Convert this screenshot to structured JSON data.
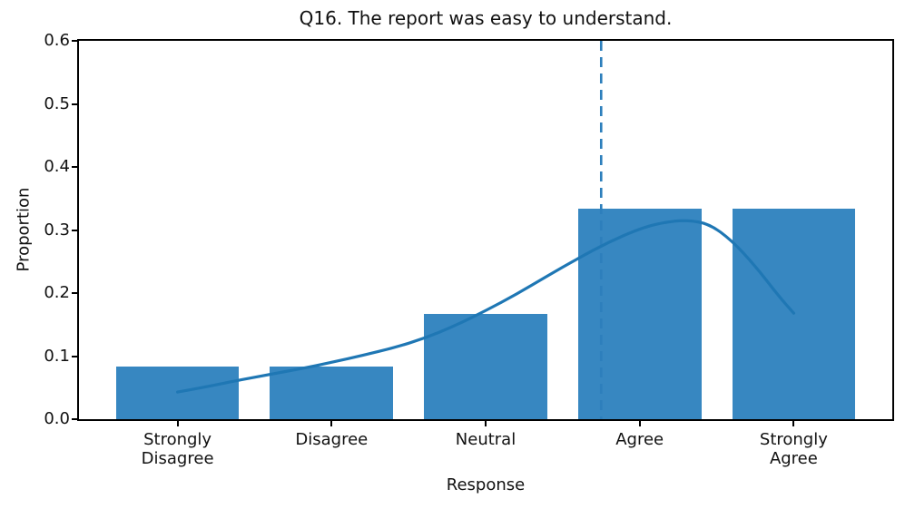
{
  "chart_data": {
    "type": "bar",
    "title": "Q16. The report was easy to understand.",
    "xlabel": "Response",
    "ylabel": "Proportion",
    "categories": [
      "Strongly\nDisagree",
      "Disagree",
      "Neutral",
      "Agree",
      "Strongly\nAgree"
    ],
    "values": [
      0.0833,
      0.0833,
      0.1667,
      0.3333,
      0.3333
    ],
    "x_positions": [
      1,
      2,
      3,
      4,
      5
    ],
    "bar_width": 0.8,
    "xlim": [
      0.36,
      5.64
    ],
    "ylim": [
      0.0,
      0.6
    ],
    "yticks": [
      0.0,
      0.1,
      0.2,
      0.3,
      0.4,
      0.5,
      0.6
    ],
    "ytick_labels": [
      "0.0",
      "0.1",
      "0.2",
      "0.3",
      "0.4",
      "0.5",
      "0.6"
    ],
    "grid": false,
    "legend": null,
    "mean_line": {
      "x": 3.75,
      "style": "dashed",
      "orientation": "vertical"
    },
    "kde_curve": {
      "x": [
        1.0,
        1.2,
        1.4,
        1.6,
        1.8,
        2.0,
        2.2,
        2.4,
        2.6,
        2.8,
        3.0,
        3.2,
        3.4,
        3.6,
        3.8,
        4.0,
        4.15,
        4.3,
        4.45,
        4.6,
        4.75,
        4.9,
        5.0
      ],
      "y": [
        0.043,
        0.052,
        0.062,
        0.071,
        0.08,
        0.09,
        0.101,
        0.113,
        0.128,
        0.148,
        0.172,
        0.198,
        0.227,
        0.255,
        0.281,
        0.302,
        0.312,
        0.316,
        0.31,
        0.283,
        0.243,
        0.196,
        0.168
      ]
    },
    "colors": {
      "bar": "#3787c1",
      "kde_line": "#1f77b4",
      "mean_line": "#2d7fbc",
      "spine": "#000000",
      "text": "#111111"
    }
  }
}
